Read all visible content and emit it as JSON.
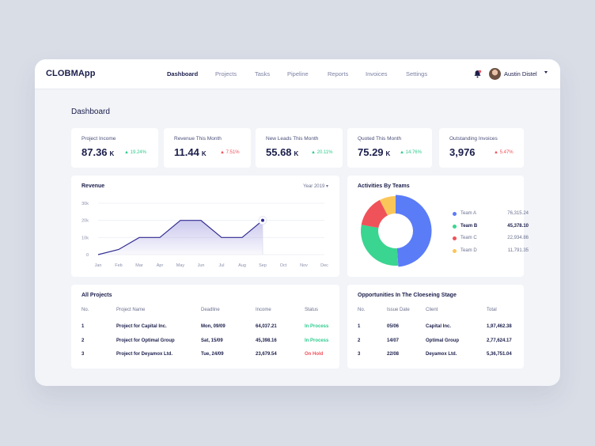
{
  "app": {
    "name": "CLOBMApp"
  },
  "nav": {
    "items": [
      {
        "label": "Dashboard",
        "active": true
      },
      {
        "label": "Projects",
        "active": false
      },
      {
        "label": "Tasks",
        "active": false
      },
      {
        "label": "Pipeline",
        "active": false
      },
      {
        "label": "Reports",
        "active": false
      },
      {
        "label": "Invoices",
        "active": false
      },
      {
        "label": "Settings",
        "active": false
      }
    ]
  },
  "user": {
    "name": "Austin Distel",
    "avatar_icon": "avatar",
    "notification_icon": "bell-icon"
  },
  "page": {
    "title": "Dashboard"
  },
  "kpis": [
    {
      "label": "Project Income",
      "value": "87.36",
      "unit": "K",
      "change": "19.24%",
      "direction": "up"
    },
    {
      "label": "Revenue This Month",
      "value": "11.44",
      "unit": "K",
      "change": "7.51%",
      "direction": "down"
    },
    {
      "label": "New Leads This Month",
      "value": "55.68",
      "unit": "K",
      "change": "20.11%",
      "direction": "up"
    },
    {
      "label": "Quoted This Month",
      "value": "75.29",
      "unit": "K",
      "change": "14.76%",
      "direction": "up"
    },
    {
      "label": "Outstanding Invoices",
      "value": "3,976",
      "unit": "",
      "change": "5.47%",
      "direction": "down"
    }
  ],
  "revenue": {
    "title": "Revenue",
    "year_select": "Year 2019",
    "chart_data": {
      "type": "area",
      "title": "Revenue",
      "x": [
        "Jan",
        "Feb",
        "Mar",
        "Apr",
        "May",
        "Jun",
        "Jul",
        "Aug",
        "Sep",
        "Oct",
        "Nov",
        "Dec"
      ],
      "series": [
        {
          "values": [
            0,
            3,
            10,
            10,
            20,
            20,
            10,
            10,
            20,
            null,
            null,
            null
          ]
        }
      ],
      "y_ticks": [
        "0",
        "10k",
        "20k",
        "30k"
      ],
      "ylim": [
        0,
        30
      ],
      "grid": true,
      "highlight_point": "Sep",
      "color": "#2f2a8f"
    }
  },
  "activities": {
    "title": "Activities By Teams",
    "chart_data": {
      "type": "pie",
      "style": "donut",
      "series": [
        {
          "name": "Team A",
          "value": 76315.24,
          "label": "76,315.24",
          "color": "#5b7cf7"
        },
        {
          "name": "Team B",
          "value": 45378.1,
          "label": "45,378.10",
          "color": "#3ad590"
        },
        {
          "name": "Team C",
          "value": 22934.86,
          "label": "22,934.86",
          "color": "#f0525a"
        },
        {
          "name": "Team D",
          "value": 11791.35,
          "label": "11,791.35",
          "color": "#fbc659"
        }
      ]
    }
  },
  "projects": {
    "title": "All Projects",
    "headers": [
      "No.",
      "Project Name",
      "Deadline",
      "Income",
      "Status"
    ],
    "rows": [
      {
        "no": "1",
        "name": "Project for Capital Inc.",
        "deadline": "Mon, 09/09",
        "income": "64,037.21",
        "status": "In Process"
      },
      {
        "no": "2",
        "name": "Project for Optimal Group",
        "deadline": "Sat, 15/09",
        "income": "45,398.16",
        "status": "In Process"
      },
      {
        "no": "3",
        "name": "Project for Deyamox Ltd.",
        "deadline": "Tue, 24/09",
        "income": "23,679.54",
        "status": "On Hold"
      }
    ]
  },
  "opportunities": {
    "title": "Opportunities In The Cloeseing Stage",
    "headers": [
      "No.",
      "Issue Date",
      "Client",
      "Total"
    ],
    "rows": [
      {
        "no": "1",
        "date": "05/06",
        "client": "Capital Inc.",
        "total": "1,97,462.38"
      },
      {
        "no": "2",
        "date": "14/07",
        "client": "Optimal Group",
        "total": "2,77,624.17"
      },
      {
        "no": "3",
        "date": "22/08",
        "client": "Deyamox Ltd.",
        "total": "5,36,751.04"
      }
    ]
  },
  "colors": {
    "accent": "#1b1e4b",
    "positive": "#2ecc8f",
    "negative": "#f0525a",
    "line": "#2f2a8f"
  }
}
